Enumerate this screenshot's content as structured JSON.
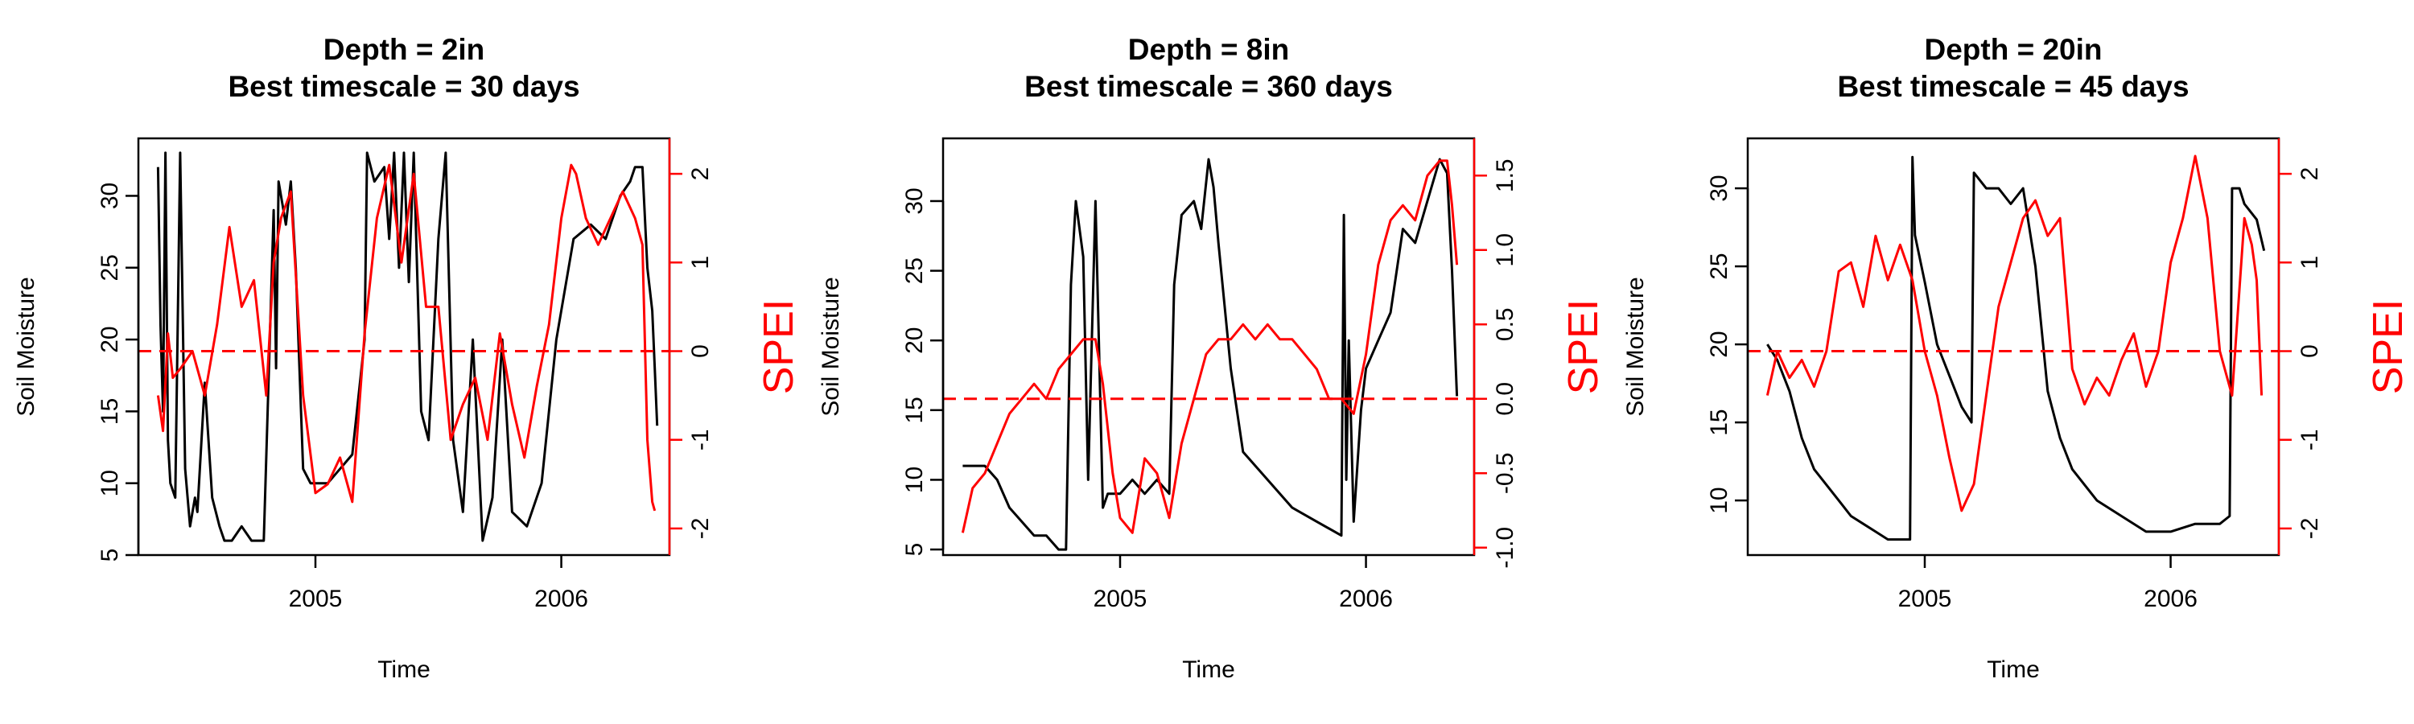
{
  "figure": {
    "primary_color": "#000000",
    "secondary_color": "#ff0000"
  },
  "chart_data": [
    {
      "type": "line",
      "title_line1": "Depth = 2in",
      "title_line2": "Best timescale = 30 days",
      "xlabel": "Time",
      "ylabel": "Soil Moisture",
      "y2label": "SPEI",
      "xlim": [
        2004.28,
        2006.44
      ],
      "x_ticks": [
        2005,
        2006
      ],
      "x_tick_labels": [
        "2005",
        "2006"
      ],
      "ylim": [
        5,
        34
      ],
      "y_ticks": [
        5,
        10,
        15,
        20,
        25,
        30
      ],
      "y_tick_labels": [
        "5",
        "10",
        "15",
        "20",
        "25",
        "30"
      ],
      "y2lim": [
        -2.3,
        2.4
      ],
      "y2_ticks": [
        -2,
        -1,
        0,
        1,
        2
      ],
      "y2_tick_labels": [
        "-2",
        "-1",
        "0",
        "1",
        "2"
      ],
      "y2_reference_line": 0,
      "series": [
        {
          "axis": "left",
          "color": "#000000",
          "x": [
            2004.36,
            2004.37,
            2004.38,
            2004.39,
            2004.4,
            2004.41,
            2004.43,
            2004.45,
            2004.47,
            2004.49,
            2004.51,
            2004.52,
            2004.55,
            2004.58,
            2004.61,
            2004.63,
            2004.66,
            2004.7,
            2004.74,
            2004.79,
            2004.83,
            2004.84,
            2004.85,
            2004.88,
            2004.9,
            2004.92,
            2004.95,
            2004.98,
            2005.0,
            2005.05,
            2005.1,
            2005.15,
            2005.2,
            2005.21,
            2005.24,
            2005.28,
            2005.3,
            2005.32,
            2005.34,
            2005.36,
            2005.38,
            2005.4,
            2005.43,
            2005.46,
            2005.5,
            2005.53,
            2005.56,
            2005.6,
            2005.64,
            2005.68,
            2005.72,
            2005.76,
            2005.8,
            2005.86,
            2005.92,
            2005.98,
            2006.05,
            2006.12,
            2006.18,
            2006.24,
            2006.28,
            2006.3,
            2006.33,
            2006.35,
            2006.37,
            2006.38,
            2006.39
          ],
          "y": [
            32,
            21,
            15,
            33,
            13,
            10,
            9,
            33,
            11,
            7,
            9,
            8,
            17,
            9,
            7,
            6,
            6,
            7,
            6,
            6,
            29,
            18,
            31,
            28,
            31,
            25,
            11,
            10,
            10,
            10,
            11,
            12,
            20,
            33,
            31,
            32,
            27,
            33,
            25,
            33,
            24,
            33,
            15,
            13,
            27,
            33,
            13,
            8,
            20,
            6,
            9,
            20,
            8,
            7,
            10,
            20,
            27,
            28,
            27,
            30,
            31,
            32,
            32,
            25,
            22,
            18,
            14
          ]
        },
        {
          "axis": "right",
          "color": "#ff0000",
          "x": [
            2004.36,
            2004.38,
            2004.4,
            2004.42,
            2004.45,
            2004.5,
            2004.55,
            2004.6,
            2004.65,
            2004.7,
            2004.75,
            2004.8,
            2004.83,
            2004.86,
            2004.9,
            2004.95,
            2005.0,
            2005.05,
            2005.1,
            2005.15,
            2005.2,
            2005.25,
            2005.3,
            2005.35,
            2005.4,
            2005.45,
            2005.5,
            2005.55,
            2005.6,
            2005.65,
            2005.7,
            2005.75,
            2005.8,
            2005.85,
            2005.9,
            2005.95,
            2006.0,
            2006.04,
            2006.06,
            2006.1,
            2006.15,
            2006.2,
            2006.25,
            2006.3,
            2006.33,
            2006.35,
            2006.37,
            2006.38
          ],
          "y": [
            -0.5,
            -0.9,
            0.2,
            -0.3,
            -0.2,
            0.0,
            -0.5,
            0.3,
            1.4,
            0.5,
            0.8,
            -0.5,
            1.0,
            1.5,
            1.8,
            -0.5,
            -1.6,
            -1.5,
            -1.2,
            -1.7,
            0.2,
            1.5,
            2.1,
            1.0,
            2.0,
            0.5,
            0.5,
            -1.0,
            -0.6,
            -0.3,
            -1.0,
            0.2,
            -0.6,
            -1.2,
            -0.4,
            0.3,
            1.5,
            2.1,
            2.0,
            1.5,
            1.2,
            1.5,
            1.8,
            1.5,
            1.2,
            -1.0,
            -1.7,
            -1.8
          ]
        }
      ]
    },
    {
      "type": "line",
      "title_line1": "Depth = 8in",
      "title_line2": "Best timescale = 360 days",
      "xlabel": "Time",
      "ylabel": "Soil Moisture",
      "y2label": "SPEI",
      "xlim": [
        2004.28,
        2006.44
      ],
      "x_ticks": [
        2005,
        2006
      ],
      "x_tick_labels": [
        "2005",
        "2006"
      ],
      "ylim": [
        4.6,
        34.5
      ],
      "y_ticks": [
        5,
        10,
        15,
        20,
        25,
        30
      ],
      "y_tick_labels": [
        "5",
        "10",
        "15",
        "20",
        "25",
        "30"
      ],
      "y2lim": [
        -1.05,
        1.75
      ],
      "y2_ticks": [
        -1.0,
        -0.5,
        0.0,
        0.5,
        1.0,
        1.5
      ],
      "y2_tick_labels": [
        "-1.0",
        "-0.5",
        "0.0",
        "0.5",
        "1.0",
        "1.5"
      ],
      "y2_reference_line": 0,
      "series": [
        {
          "axis": "left",
          "color": "#000000",
          "x": [
            2004.36,
            2004.4,
            2004.45,
            2004.5,
            2004.55,
            2004.6,
            2004.65,
            2004.7,
            2004.75,
            2004.78,
            2004.8,
            2004.82,
            2004.85,
            2004.87,
            2004.9,
            2004.93,
            2004.95,
            2005.0,
            2005.05,
            2005.1,
            2005.15,
            2005.2,
            2005.22,
            2005.25,
            2005.3,
            2005.33,
            2005.36,
            2005.38,
            2005.4,
            2005.45,
            2005.5,
            2005.6,
            2005.7,
            2005.8,
            2005.9,
            2005.91,
            2005.92,
            2005.93,
            2005.95,
            2005.98,
            2006.0,
            2006.05,
            2006.1,
            2006.15,
            2006.2,
            2006.25,
            2006.3,
            2006.33,
            2006.35,
            2006.37
          ],
          "y": [
            11,
            11,
            11,
            10,
            8,
            7,
            6,
            6,
            5,
            5,
            24,
            30,
            26,
            10,
            30,
            8,
            9,
            9,
            10,
            9,
            10,
            9,
            24,
            29,
            30,
            28,
            33,
            31,
            27,
            18,
            12,
            10,
            8,
            7,
            6,
            29,
            10,
            20,
            7,
            15,
            18,
            20,
            22,
            28,
            27,
            30,
            33,
            32,
            25,
            16
          ]
        },
        {
          "axis": "right",
          "color": "#ff0000",
          "x": [
            2004.36,
            2004.4,
            2004.45,
            2004.5,
            2004.55,
            2004.6,
            2004.65,
            2004.7,
            2004.75,
            2004.8,
            2004.85,
            2004.9,
            2004.93,
            2004.97,
            2005.0,
            2005.05,
            2005.1,
            2005.15,
            2005.2,
            2005.25,
            2005.3,
            2005.35,
            2005.4,
            2005.45,
            2005.5,
            2005.55,
            2005.6,
            2005.65,
            2005.7,
            2005.75,
            2005.8,
            2005.85,
            2005.9,
            2005.95,
            2006.0,
            2006.05,
            2006.1,
            2006.15,
            2006.2,
            2006.25,
            2006.3,
            2006.33,
            2006.35,
            2006.37
          ],
          "y": [
            -0.9,
            -0.6,
            -0.5,
            -0.3,
            -0.1,
            0.0,
            0.1,
            0.0,
            0.2,
            0.3,
            0.4,
            0.4,
            0.1,
            -0.5,
            -0.8,
            -0.9,
            -0.4,
            -0.5,
            -0.8,
            -0.3,
            0.0,
            0.3,
            0.4,
            0.4,
            0.5,
            0.4,
            0.5,
            0.4,
            0.4,
            0.3,
            0.2,
            0.0,
            0.0,
            -0.1,
            0.3,
            0.9,
            1.2,
            1.3,
            1.2,
            1.5,
            1.6,
            1.6,
            1.3,
            0.9
          ]
        }
      ]
    },
    {
      "type": "line",
      "title_line1": "Depth = 20in",
      "title_line2": "Best timescale = 45 days",
      "xlabel": "Time",
      "ylabel": "Soil Moisture",
      "y2label": "SPEI",
      "xlim": [
        2004.28,
        2006.44
      ],
      "x_ticks": [
        2005,
        2006
      ],
      "x_tick_labels": [
        "2005",
        "2006"
      ],
      "ylim": [
        6.5,
        33.2
      ],
      "y_ticks": [
        10,
        15,
        20,
        25,
        30
      ],
      "y_tick_labels": [
        "10",
        "15",
        "20",
        "25",
        "30"
      ],
      "y2lim": [
        -2.3,
        2.4
      ],
      "y2_ticks": [
        -2,
        -1,
        0,
        1,
        2
      ],
      "y2_tick_labels": [
        "-2",
        "-1",
        "0",
        "1",
        "2"
      ],
      "y2_reference_line": 0,
      "series": [
        {
          "axis": "left",
          "color": "#000000",
          "x": [
            2004.36,
            2004.4,
            2004.45,
            2004.5,
            2004.55,
            2004.6,
            2004.65,
            2004.7,
            2004.75,
            2004.8,
            2004.85,
            2004.9,
            2004.94,
            2004.95,
            2004.96,
            2005.0,
            2005.05,
            2005.1,
            2005.15,
            2005.19,
            2005.2,
            2005.25,
            2005.3,
            2005.35,
            2005.4,
            2005.45,
            2005.5,
            2005.55,
            2005.6,
            2005.7,
            2005.8,
            2005.9,
            2006.0,
            2006.1,
            2006.2,
            2006.24,
            2006.25,
            2006.28,
            2006.3,
            2006.35,
            2006.38
          ],
          "y": [
            20,
            19,
            17,
            14,
            12,
            11,
            10,
            9,
            8.5,
            8,
            7.5,
            7.5,
            7.5,
            32,
            27,
            24,
            20,
            18,
            16,
            15,
            31,
            30,
            30,
            29,
            30,
            25,
            17,
            14,
            12,
            10,
            9,
            8,
            8,
            8.5,
            8.5,
            9,
            30,
            30,
            29,
            28,
            26
          ]
        },
        {
          "axis": "right",
          "color": "#ff0000",
          "x": [
            2004.36,
            2004.4,
            2004.45,
            2004.5,
            2004.55,
            2004.6,
            2004.65,
            2004.7,
            2004.75,
            2004.8,
            2004.85,
            2004.9,
            2004.95,
            2005.0,
            2005.05,
            2005.1,
            2005.15,
            2005.2,
            2005.25,
            2005.3,
            2005.35,
            2005.4,
            2005.45,
            2005.5,
            2005.55,
            2005.6,
            2005.65,
            2005.7,
            2005.75,
            2005.8,
            2005.85,
            2005.9,
            2005.95,
            2006.0,
            2006.05,
            2006.1,
            2006.15,
            2006.2,
            2006.25,
            2006.3,
            2006.33,
            2006.35,
            2006.37
          ],
          "y": [
            -0.5,
            0.0,
            -0.3,
            -0.1,
            -0.4,
            0.0,
            0.9,
            1.0,
            0.5,
            1.3,
            0.8,
            1.2,
            0.8,
            0.0,
            -0.5,
            -1.2,
            -1.8,
            -1.5,
            -0.5,
            0.5,
            1.0,
            1.5,
            1.7,
            1.3,
            1.5,
            -0.2,
            -0.6,
            -0.3,
            -0.5,
            -0.1,
            0.2,
            -0.4,
            0.0,
            1.0,
            1.5,
            2.2,
            1.5,
            0.0,
            -0.5,
            1.5,
            1.2,
            0.8,
            -0.5
          ]
        }
      ]
    }
  ]
}
